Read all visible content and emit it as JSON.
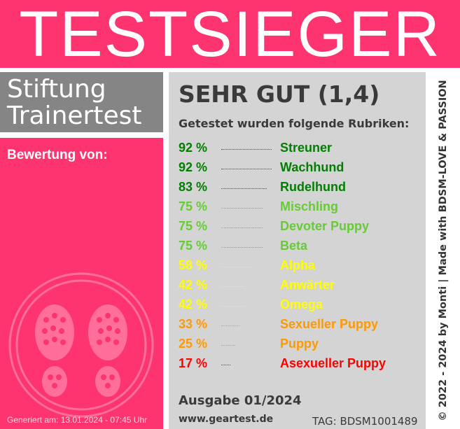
{
  "banner": {
    "title": "TESTSIEGER"
  },
  "stiftung": {
    "line1": "Stiftung",
    "line2": "Trainertest"
  },
  "left": {
    "bewertung_label": "Bewertung von:",
    "generated": "Generiert am: 13.01.2024 - 07:45 Uhr"
  },
  "main": {
    "grade": "SEHR GUT (1,4)",
    "intro": "Getestet wurden folgende Rubriken:",
    "categories": [
      {
        "percent": "92 %",
        "value": 92,
        "name": "Streuner",
        "color": "#008000"
      },
      {
        "percent": "92 %",
        "value": 92,
        "name": "Wachhund",
        "color": "#008000"
      },
      {
        "percent": "83 %",
        "value": 83,
        "name": "Rudelhund",
        "color": "#008000"
      },
      {
        "percent": "75 %",
        "value": 75,
        "name": "Mischling",
        "color": "#66cc33"
      },
      {
        "percent": "75 %",
        "value": 75,
        "name": "Devoter Puppy",
        "color": "#66cc33"
      },
      {
        "percent": "75 %",
        "value": 75,
        "name": "Beta",
        "color": "#66cc33"
      },
      {
        "percent": "58 %",
        "value": 58,
        "name": "Alpha",
        "color": "#ffff00"
      },
      {
        "percent": "42 %",
        "value": 42,
        "name": "Anwärter",
        "color": "#ffff00"
      },
      {
        "percent": "42 %",
        "value": 42,
        "name": "Omega",
        "color": "#ffff00"
      },
      {
        "percent": "33 %",
        "value": 33,
        "name": "Sexueller Puppy",
        "color": "#ff9900"
      },
      {
        "percent": "25 %",
        "value": 25,
        "name": "Puppy",
        "color": "#ff9900"
      },
      {
        "percent": "17 %",
        "value": 17,
        "name": "Asexueller Puppy",
        "color": "#ff0000"
      }
    ],
    "ausgabe": "Ausgabe 01/2024",
    "website": "www.geartest.de",
    "tag": "TAG: BDSM1001489"
  },
  "side": {
    "text": "© 2022 - 2024 by Monti | Made with BDSM-LOVE & PASSION"
  },
  "colors": {
    "brand_pink": "#fd3470",
    "gray_panel": "#858585",
    "main_bg": "#d4d4d4"
  }
}
